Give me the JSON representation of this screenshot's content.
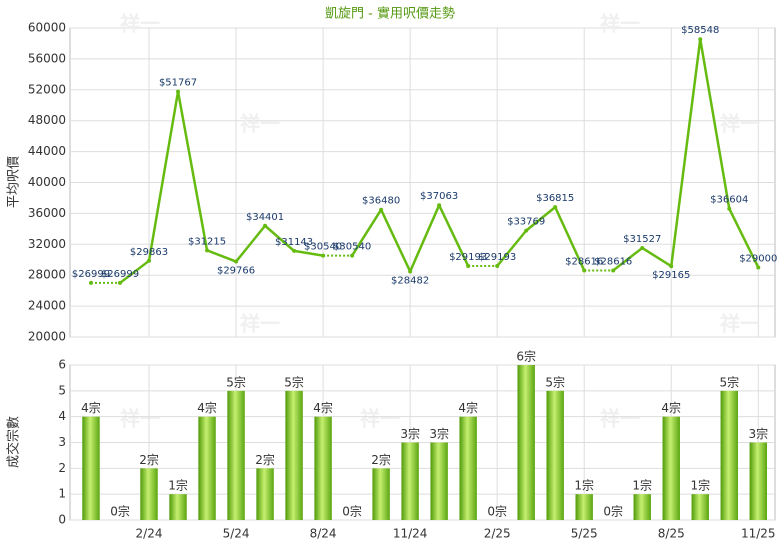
{
  "chart_data": [
    {
      "type": "line",
      "title": "凱旋門 - 實用呎價走勢",
      "y_label": "平均呎價",
      "color": "#66bb11",
      "values": [
        26999,
        26999,
        29863,
        51767,
        31215,
        29766,
        34401,
        31143,
        30540,
        30540,
        36480,
        28482,
        37063,
        29193,
        29193,
        33769,
        36815,
        28616,
        28616,
        31527,
        29165,
        58548,
        36604,
        29000
      ],
      "value_labels": [
        "$26999",
        "$26999",
        "$29863",
        "$51767",
        "$31215",
        "$29766",
        "$34401",
        "$31143",
        "$30540",
        "$30540",
        "$36480",
        "$28482",
        "$37063",
        "$29193",
        "$29193",
        "$33769",
        "$36815",
        "$28616",
        "$28616",
        "$31527",
        "$29165",
        "$58548",
        "$36604",
        "$29000"
      ],
      "ylim": [
        20000,
        60000
      ],
      "yticks": [
        20000,
        24000,
        28000,
        32000,
        36000,
        40000,
        44000,
        48000,
        52000,
        56000,
        60000
      ],
      "grid": true,
      "watermark": "祥一"
    },
    {
      "type": "bar",
      "y_label": "成交宗數",
      "color": "#77bb22",
      "categories": [
        null,
        null,
        "2/24",
        null,
        null,
        "5/24",
        null,
        null,
        "8/24",
        null,
        null,
        "11/24",
        null,
        null,
        "2/25",
        null,
        null,
        "5/25",
        null,
        null,
        "8/25",
        null,
        null,
        "11/25"
      ],
      "values": [
        4,
        0,
        2,
        1,
        4,
        5,
        2,
        5,
        4,
        0,
        2,
        3,
        3,
        4,
        0,
        6,
        5,
        1,
        0,
        1,
        4,
        1,
        5,
        3
      ],
      "value_labels": [
        "4宗",
        "0宗",
        "2宗",
        "1宗",
        "4宗",
        "5宗",
        "2宗",
        "5宗",
        "4宗",
        "0宗",
        "2宗",
        "3宗",
        "3宗",
        "4宗",
        "0宗",
        "6宗",
        "5宗",
        "1宗",
        "0宗",
        "1宗",
        "4宗",
        "1宗",
        "5宗",
        "3宗"
      ],
      "ylim": [
        0,
        6
      ],
      "yticks": [
        0,
        1,
        2,
        3,
        4,
        5,
        6
      ],
      "grid": true
    }
  ]
}
